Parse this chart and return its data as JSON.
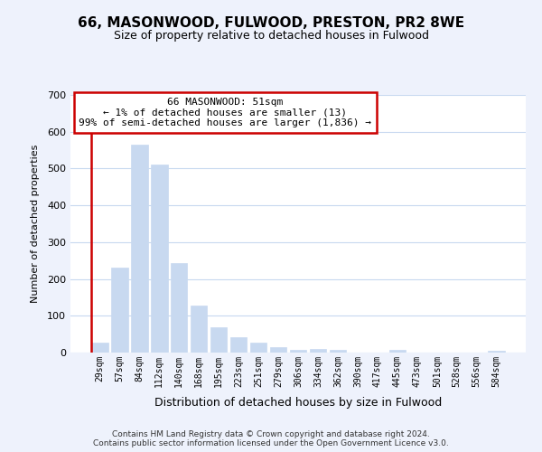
{
  "title": "66, MASONWOOD, FULWOOD, PRESTON, PR2 8WE",
  "subtitle": "Size of property relative to detached houses in Fulwood",
  "xlabel": "Distribution of detached houses by size in Fulwood",
  "ylabel": "Number of detached properties",
  "bin_labels": [
    "29sqm",
    "57sqm",
    "84sqm",
    "112sqm",
    "140sqm",
    "168sqm",
    "195sqm",
    "223sqm",
    "251sqm",
    "279sqm",
    "306sqm",
    "334sqm",
    "362sqm",
    "390sqm",
    "417sqm",
    "445sqm",
    "473sqm",
    "501sqm",
    "528sqm",
    "556sqm",
    "584sqm"
  ],
  "bar_values": [
    28,
    230,
    565,
    510,
    243,
    127,
    70,
    42,
    27,
    14,
    8,
    10,
    8,
    0,
    0,
    7,
    0,
    0,
    0,
    0,
    5
  ],
  "bar_color": "#c8d9f0",
  "property_line_color": "#cc0000",
  "annotation_text": "66 MASONWOOD: 51sqm\n← 1% of detached houses are smaller (13)\n99% of semi-detached houses are larger (1,836) →",
  "annotation_box_color": "#ffffff",
  "annotation_box_edgecolor": "#cc0000",
  "ylim": [
    0,
    700
  ],
  "yticks": [
    0,
    100,
    200,
    300,
    400,
    500,
    600,
    700
  ],
  "footer_text": "Contains HM Land Registry data © Crown copyright and database right 2024.\nContains public sector information licensed under the Open Government Licence v3.0.",
  "bg_color": "#eef2fc",
  "plot_bg_color": "#ffffff",
  "grid_color": "#c8d9f0"
}
